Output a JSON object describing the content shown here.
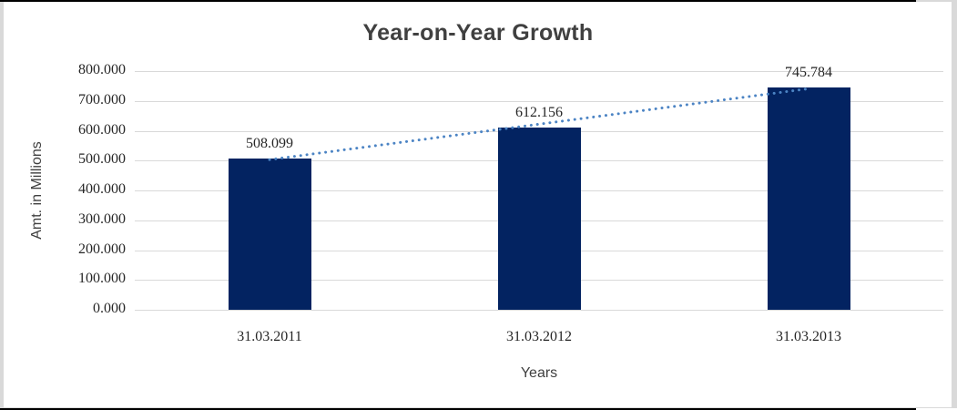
{
  "chart_data": {
    "type": "bar",
    "title": "Year-on-Year Growth",
    "xlabel": "Years",
    "ylabel": "Amt. in Millions",
    "categories": [
      "31.03.2011",
      "31.03.2012",
      "31.03.2013"
    ],
    "values": [
      508.099,
      612.156,
      745.784
    ],
    "data_labels": [
      "508.099",
      "612.156",
      "745.784"
    ],
    "ylim": [
      0,
      800
    ],
    "ytick_values": [
      0,
      100,
      200,
      300,
      400,
      500,
      600,
      700,
      800
    ],
    "ytick_labels": [
      "0.000",
      "100.000",
      "200.000",
      "300.000",
      "400.000",
      "500.000",
      "600.000",
      "700.000",
      "800.000"
    ],
    "grid": true,
    "legend": "none",
    "trendline": {
      "type": "linear",
      "style": "dotted"
    },
    "colors": {
      "bar": "#032361",
      "trendline": "#4c84c4",
      "gridline": "#d9d9d9",
      "title_text": "#404040",
      "number_text": "#262626",
      "frame_border": "#000000",
      "outer_strip": "#d9d9d9"
    }
  }
}
